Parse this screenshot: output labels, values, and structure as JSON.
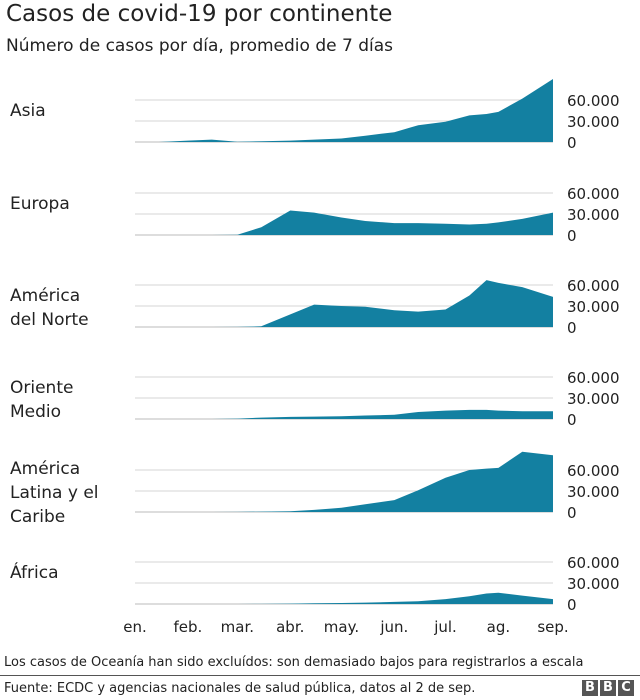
{
  "title": "Casos de covid-19 por continente",
  "subtitle": "Número de casos por día, promedio de 7 días",
  "note": "Los casos de Oceanía han sido excluídos: son demasiado bajos para registrarlos a escala",
  "source": "Fuente: ECDC y agencias nacionales de salud pública, datos al 2 de sep.",
  "logo": "BBC",
  "chart_data": {
    "type": "area",
    "color": "#1380A1",
    "x_ticks": [
      "en.",
      "feb.",
      "mar.",
      "abr.",
      "may.",
      "jun.",
      "jul.",
      "ag.",
      "sep."
    ],
    "y_ticks": [
      "60.000",
      "30.000",
      "0"
    ],
    "ylim": [
      0,
      90000
    ],
    "x": [
      "01-01",
      "01-15",
      "02-01",
      "02-15",
      "03-01",
      "03-15",
      "04-01",
      "04-15",
      "05-01",
      "05-15",
      "06-01",
      "06-15",
      "07-01",
      "07-15",
      "07-25",
      "08-01",
      "08-15",
      "09-02"
    ],
    "panels": [
      {
        "label": [
          "Asia"
        ],
        "values": [
          0,
          0,
          2000,
          3500,
          500,
          1000,
          2000,
          3500,
          5000,
          9000,
          14000,
          24000,
          29000,
          38000,
          40000,
          43000,
          62000,
          90000
        ]
      },
      {
        "label": [
          "Europa"
        ],
        "values": [
          0,
          0,
          0,
          0,
          500,
          11000,
          35000,
          32000,
          25000,
          20000,
          17000,
          17000,
          16000,
          15000,
          16000,
          18000,
          23000,
          32000
        ]
      },
      {
        "label": [
          "América",
          "del Norte"
        ],
        "values": [
          0,
          0,
          0,
          0,
          100,
          1000,
          18000,
          32000,
          30000,
          29000,
          24000,
          22000,
          25000,
          45000,
          67000,
          63000,
          57000,
          43000
        ]
      },
      {
        "label": [
          "Oriente",
          "Medio"
        ],
        "values": [
          0,
          0,
          0,
          0,
          500,
          2000,
          3000,
          3500,
          4000,
          5000,
          6000,
          10000,
          12000,
          13000,
          13000,
          12000,
          11000,
          11000
        ]
      },
      {
        "label": [
          "América",
          "Latina y el",
          "Caribe"
        ],
        "values": [
          0,
          0,
          0,
          0,
          100,
          500,
          1000,
          3000,
          6000,
          11000,
          17000,
          31000,
          49000,
          60000,
          62000,
          63000,
          86000,
          81000
        ]
      },
      {
        "label": [
          "África"
        ],
        "values": [
          0,
          0,
          0,
          0,
          0,
          100,
          500,
          1000,
          1500,
          2000,
          3000,
          4000,
          7000,
          11000,
          15000,
          16000,
          12000,
          7000
        ]
      }
    ]
  }
}
